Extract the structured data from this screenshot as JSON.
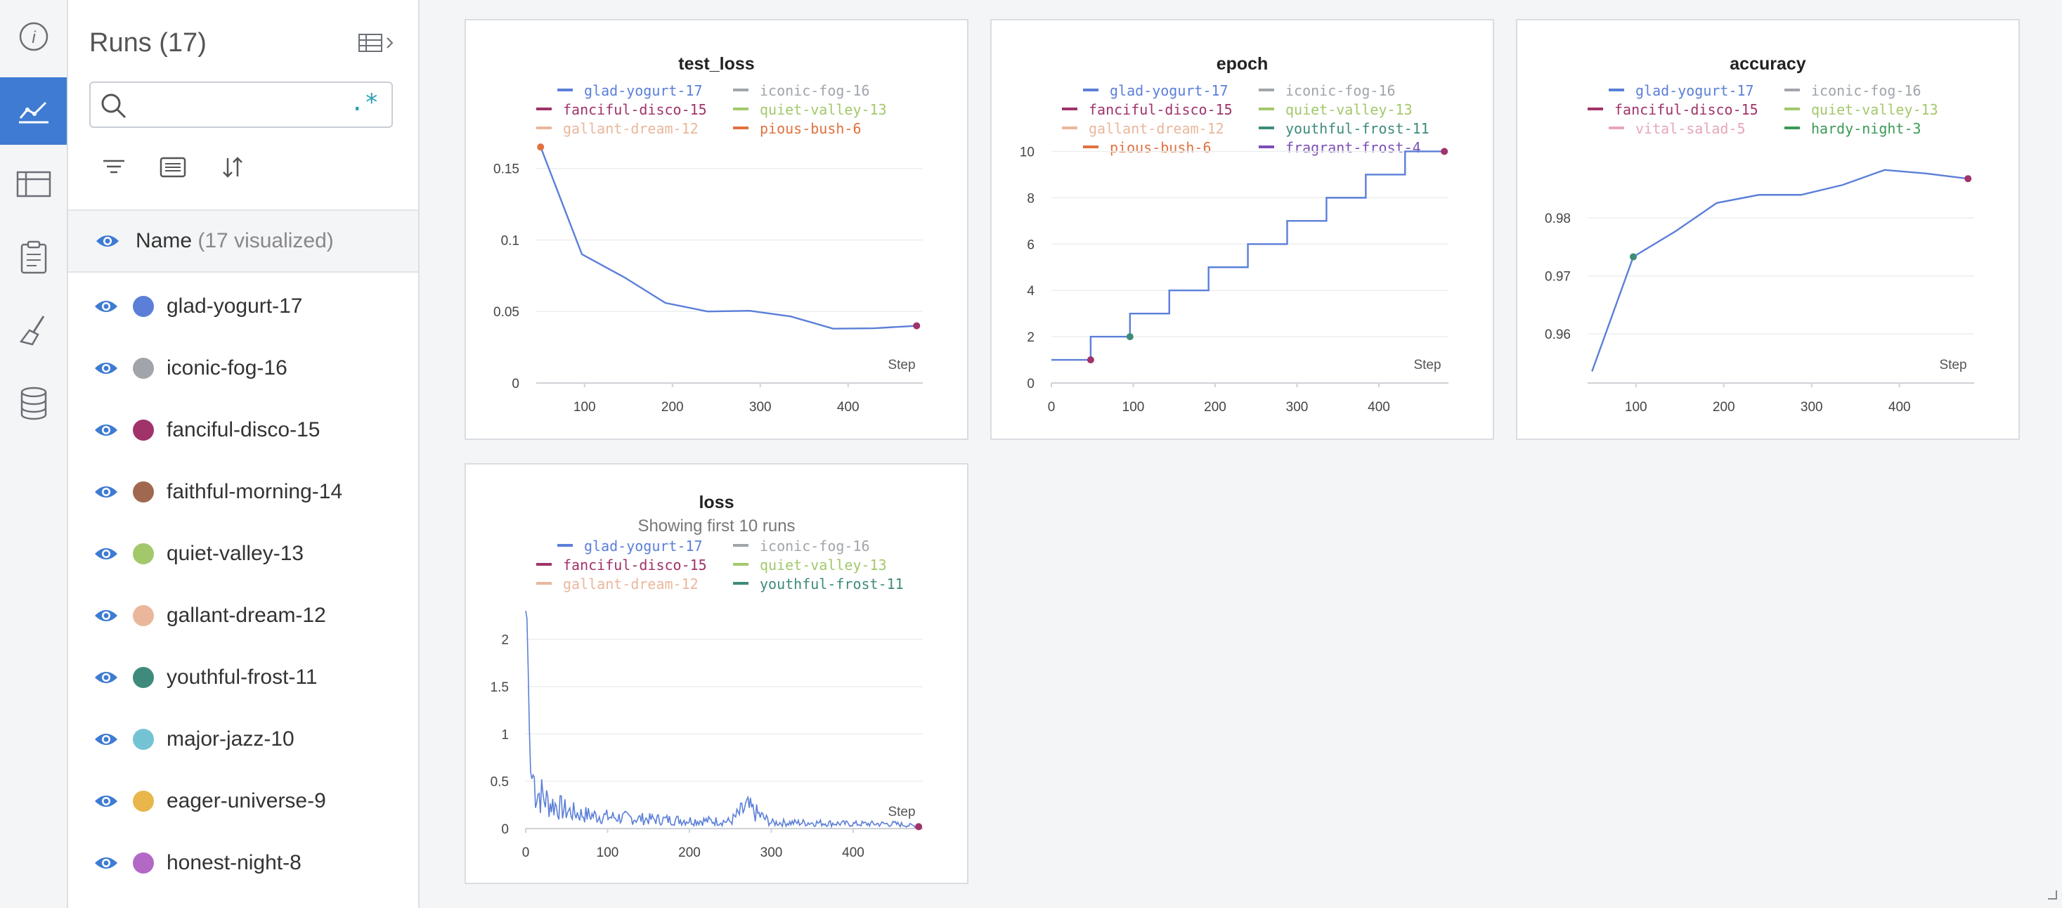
{
  "rail": {
    "items": [
      {
        "name": "info-icon"
      },
      {
        "name": "charts-icon",
        "active": true
      },
      {
        "name": "table-icon"
      },
      {
        "name": "clipboard-icon"
      },
      {
        "name": "sweep-brush-icon"
      },
      {
        "name": "database-icon"
      }
    ]
  },
  "sidebar": {
    "title": "Runs (17)",
    "search": {
      "value": "",
      "placeholder": "",
      "regex_label": ".*"
    },
    "header": {
      "label": "Name",
      "sub": "(17 visualized)"
    },
    "runs": [
      {
        "name": "glad-yogurt-17",
        "color": "#5b7fd8"
      },
      {
        "name": "iconic-fog-16",
        "color": "#a1a5ab"
      },
      {
        "name": "fanciful-disco-15",
        "color": "#a0336a"
      },
      {
        "name": "faithful-morning-14",
        "color": "#a0694f"
      },
      {
        "name": "quiet-valley-13",
        "color": "#a3c86b"
      },
      {
        "name": "gallant-dream-12",
        "color": "#eab79c"
      },
      {
        "name": "youthful-frost-11",
        "color": "#3e8b7c"
      },
      {
        "name": "major-jazz-10",
        "color": "#74c3d4"
      },
      {
        "name": "eager-universe-9",
        "color": "#e8b64b"
      },
      {
        "name": "honest-night-8",
        "color": "#b368c6"
      }
    ]
  },
  "colors": {
    "glad-yogurt-17": "#5b7fd8",
    "iconic-fog-16": "#a1a5ab",
    "fanciful-disco-15": "#a0336a",
    "quiet-valley-13": "#a3c86b",
    "gallant-dream-12": "#eab79c",
    "pious-bush-6": "#e0713e",
    "youthful-frost-11": "#3e8b7c",
    "fragrant-frost-4": "#7c4fb5",
    "vital-salad-5": "#e7a7b8",
    "hardy-night-3": "#3c9a56"
  },
  "panels": [
    {
      "id": "test_loss",
      "title": "test_loss",
      "subtitle": "",
      "legend": [
        [
          "glad-yogurt-17",
          "iconic-fog-16"
        ],
        [
          "fanciful-disco-15",
          "quiet-valley-13"
        ],
        [
          "gallant-dream-12",
          "pious-bush-6"
        ]
      ],
      "x_label": "Step"
    },
    {
      "id": "epoch",
      "title": "epoch",
      "subtitle": "",
      "legend": [
        [
          "glad-yogurt-17",
          "iconic-fog-16"
        ],
        [
          "fanciful-disco-15",
          "quiet-valley-13"
        ],
        [
          "gallant-dream-12",
          "youthful-frost-11"
        ],
        [
          "pious-bush-6",
          "fragrant-frost-4"
        ]
      ],
      "x_label": "Step"
    },
    {
      "id": "accuracy",
      "title": "accuracy",
      "subtitle": "",
      "legend": [
        [
          "glad-yogurt-17",
          "iconic-fog-16"
        ],
        [
          "fanciful-disco-15",
          "quiet-valley-13"
        ],
        [
          "vital-salad-5",
          "hardy-night-3"
        ]
      ],
      "x_label": "Step"
    },
    {
      "id": "loss",
      "title": "loss",
      "subtitle": "Showing first 10 runs",
      "legend": [
        [
          "glad-yogurt-17",
          "iconic-fog-16"
        ],
        [
          "fanciful-disco-15",
          "quiet-valley-13"
        ],
        [
          "gallant-dream-12",
          "youthful-frost-11"
        ]
      ],
      "x_label": "Step"
    }
  ],
  "chart_data": [
    {
      "type": "line",
      "title": "test_loss",
      "xlabel": "Step",
      "ylabel": "",
      "xticks": [
        100,
        200,
        300,
        400
      ],
      "yticks": [
        0,
        0.05,
        0.1,
        0.15
      ],
      "xlim": [
        45,
        485
      ],
      "ylim": [
        0,
        0.17
      ],
      "grid": true,
      "series": [
        {
          "name": "glad-yogurt-17",
          "x": [
            50,
            97,
            145,
            192,
            240,
            288,
            335,
            383,
            430,
            478
          ],
          "y": [
            0.165,
            0.09,
            0.074,
            0.056,
            0.05,
            0.0505,
            0.0465,
            0.038,
            0.0383,
            0.04
          ]
        }
      ],
      "markers": [
        {
          "x": 50,
          "y": 0.165,
          "color": "#e0713e"
        },
        {
          "x": 478,
          "y": 0.04,
          "color": "#a0336a"
        }
      ]
    },
    {
      "type": "line",
      "title": "epoch",
      "xlabel": "Step",
      "ylabel": "",
      "xticks": [
        0,
        100,
        200,
        300,
        400
      ],
      "yticks": [
        0,
        2,
        4,
        6,
        8,
        10
      ],
      "xlim": [
        0,
        485
      ],
      "ylim": [
        0,
        10.5
      ],
      "grid": true,
      "step": true,
      "series": [
        {
          "name": "glad-yogurt-17",
          "x": [
            0,
            48,
            96,
            144,
            192,
            240,
            288,
            336,
            384,
            432,
            480
          ],
          "y": [
            1,
            2,
            3,
            4,
            5,
            6,
            7,
            8,
            9,
            10,
            10
          ]
        }
      ],
      "markers": [
        {
          "x": 48,
          "y": 1,
          "color": "#a0336a"
        },
        {
          "x": 96,
          "y": 2,
          "color": "#3e8b7c"
        },
        {
          "x": 480,
          "y": 10,
          "color": "#a0336a"
        }
      ]
    },
    {
      "type": "line",
      "title": "accuracy",
      "xlabel": "Step",
      "ylabel": "",
      "xticks": [
        100,
        200,
        300,
        400
      ],
      "yticks": [
        0.96,
        0.97,
        0.98
      ],
      "xlim": [
        45,
        485
      ],
      "ylim": [
        0.9515,
        0.9935
      ],
      "grid": true,
      "series": [
        {
          "name": "glad-yogurt-17",
          "x": [
            50,
            97,
            145,
            192,
            240,
            288,
            335,
            383,
            430,
            478
          ],
          "y": [
            0.9535,
            0.9733,
            0.9777,
            0.9826,
            0.984,
            0.984,
            0.9857,
            0.9883,
            0.9877,
            0.9868
          ]
        }
      ],
      "markers": [
        {
          "x": 97,
          "y": 0.9733,
          "color": "#3e8b7c"
        },
        {
          "x": 478,
          "y": 0.9868,
          "color": "#a0336a"
        }
      ]
    },
    {
      "type": "line",
      "title": "loss",
      "subtitle": "Showing first 10 runs",
      "xlabel": "Step",
      "ylabel": "",
      "xticks": [
        0,
        100,
        200,
        300,
        400
      ],
      "yticks": [
        0,
        0.5,
        1,
        1.5,
        2
      ],
      "xlim": [
        0,
        485
      ],
      "ylim": [
        0,
        2.45
      ],
      "grid": true,
      "series": [
        {
          "name": "glad-yogurt-17",
          "x": [
            0,
            2,
            4,
            6,
            8,
            12,
            16,
            20,
            28,
            36,
            50,
            70,
            100,
            150,
            200,
            250,
            270,
            300,
            350,
            400,
            450,
            480
          ],
          "y": [
            2.3,
            2.2,
            1.2,
            0.6,
            0.5,
            0.35,
            0.3,
            0.28,
            0.22,
            0.2,
            0.15,
            0.12,
            0.1,
            0.08,
            0.07,
            0.06,
            0.18,
            0.05,
            0.05,
            0.04,
            0.04,
            0.02
          ]
        }
      ],
      "markers": [
        {
          "x": 480,
          "y": 0.02,
          "color": "#a0336a"
        }
      ]
    }
  ]
}
